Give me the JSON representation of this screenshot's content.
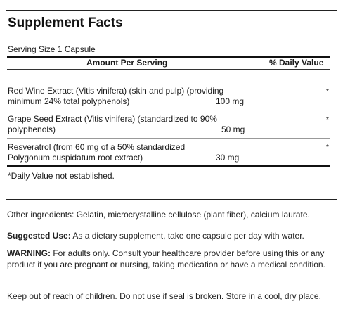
{
  "facts": {
    "title": "Supplement Facts",
    "serving_size": "Serving Size 1 Capsule",
    "header_amount": "Amount Per Serving",
    "header_dv": "% Daily Value",
    "ingredients": [
      {
        "line1": "Red Wine Extract (Vitis vinifera) (skin and pulp) (providing",
        "line2": "minimum 24% total polyphenols)",
        "amount": "100 mg",
        "dv": "*"
      },
      {
        "line1": "Grape Seed Extract (Vitis vinifera) (standardized to 90%",
        "line2": "polyphenols)",
        "amount": "50 mg",
        "dv": "*"
      },
      {
        "line1": "Resveratrol (from 60 mg of a 50% standardized",
        "line2": "Polygonum cuspidatum root extract)",
        "amount": "30 mg",
        "dv": "*"
      }
    ],
    "footnote": "*Daily Value not established."
  },
  "info": {
    "other_ingredients": "Other ingredients: Gelatin, microcrystalline cellulose (plant fiber), calcium laurate.",
    "suggested_use_label": "Suggested Use:",
    "suggested_use_text": " As a dietary supplement, take one capsule per day with water.",
    "warning_label": "WARNING:",
    "warning_text": " For adults only. Consult your healthcare provider before using this or any product if you are pregnant or nursing, taking medication or have a medical condition.",
    "storage": "Keep out of reach of children. Do not use if seal is broken. Store in a cool, dry place."
  }
}
